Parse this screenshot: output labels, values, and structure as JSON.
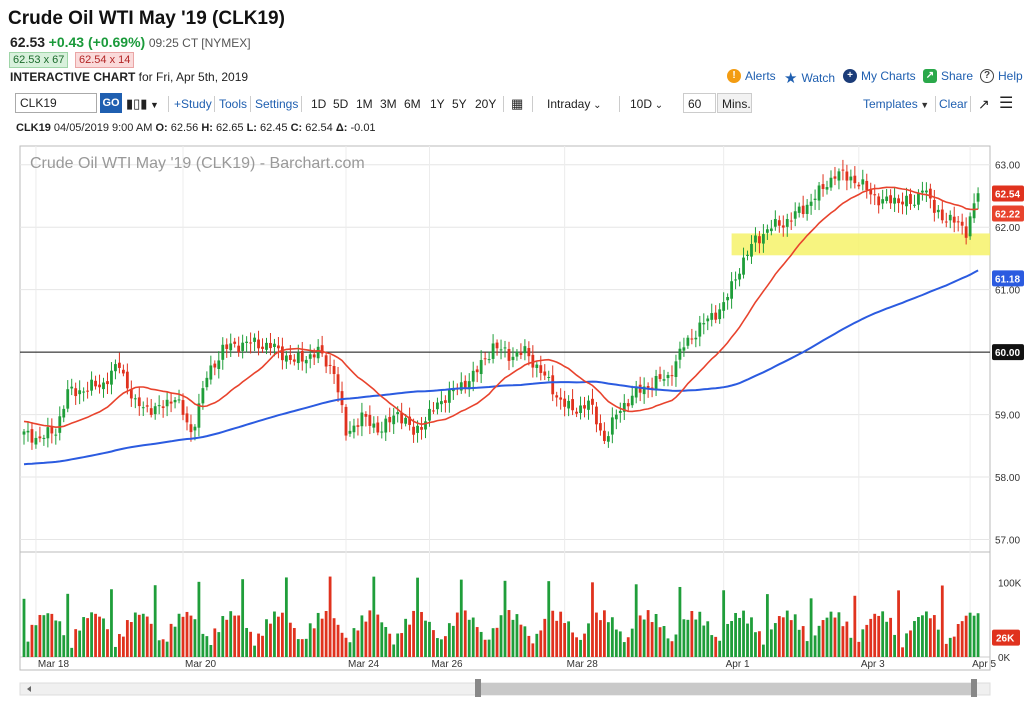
{
  "header": {
    "title": "Crude Oil WTI May '19 (CLK19)",
    "last": "62.53",
    "change": "+0.43 (+0.69%)",
    "time": "09:25 CT [NYMEX]",
    "bid": "62.53 x 67",
    "ask": "62.54 x 14",
    "interactive_label": "INTERACTIVE CHART",
    "interactive_for": " for Fri, Apr 5th, 2019"
  },
  "links": {
    "alerts": "Alerts",
    "watch": "Watch",
    "mycharts": "My Charts",
    "share": "Share",
    "help": "Help"
  },
  "toolbar": {
    "symbol": "CLK19",
    "go": "GO",
    "study": "+Study",
    "tools": "Tools",
    "settings": "Settings",
    "periods": [
      "1D",
      "5D",
      "1M",
      "3M",
      "6M",
      "1Y",
      "5Y",
      "20Y"
    ],
    "interval": "Intraday",
    "range": "10D",
    "mins_value": "60",
    "mins_label": "Mins.",
    "templates": "Templates",
    "clear": "Clear"
  },
  "ohlc": {
    "symbol": "CLK19",
    "date": " 04/05/2019 9:00 AM ",
    "o_label": "O:",
    "o": " 62.56 ",
    "h_label": "H:",
    "h": " 62.65 ",
    "l_label": "L:",
    "l": " 62.45 ",
    "c_label": "C:",
    "c": " 62.54 ",
    "d_label": "Δ:",
    "d": " -0.01"
  },
  "colors": {
    "up": "#1f9e3a",
    "down": "#e0321e",
    "ma_fast": "#e8432d",
    "ma_slow": "#2b5be0",
    "highlight": "#f6f26a",
    "link": "#1f5fb0"
  },
  "chart_data": {
    "type": "candlestick",
    "title": "Crude Oil WTI May '19 (CLK19) - Barchart.com",
    "interval": "60 min",
    "ylim": [
      56.8,
      63.3
    ],
    "y_ticks": [
      "63.00",
      "62.00",
      "61.00",
      "60.00",
      "59.00",
      "58.00",
      "57.00"
    ],
    "y_tick_values": [
      63,
      62,
      61,
      60,
      59,
      58,
      57
    ],
    "x_tick_labels": [
      "Mar 18",
      "Mar 20",
      "Mar 24",
      "Mar 26",
      "Mar 28",
      "Apr 1",
      "Apr 3",
      "Apr 5"
    ],
    "x_tick_bar_index": [
      3,
      40,
      81,
      102,
      136,
      176,
      210,
      238
    ],
    "horizontal_line": 60.0,
    "support_zone": [
      61.55,
      61.9
    ],
    "price_tags": [
      {
        "label": "62.54",
        "value": 62.54,
        "color": "#e0321e"
      },
      {
        "label": "62.22",
        "value": 62.22,
        "color": "#e8432d"
      },
      {
        "label": "61.18",
        "value": 61.18,
        "color": "#2b5be0"
      },
      {
        "label": "60.00",
        "value": 60.0,
        "color": "#111"
      }
    ],
    "close_anchors": [
      [
        0,
        58.68
      ],
      [
        4,
        58.62
      ],
      [
        8,
        58.75
      ],
      [
        11,
        59.35
      ],
      [
        15,
        59.4
      ],
      [
        20,
        59.5
      ],
      [
        24,
        59.8
      ],
      [
        28,
        59.15
      ],
      [
        34,
        59.08
      ],
      [
        38,
        59.3
      ],
      [
        42,
        58.7
      ],
      [
        46,
        59.6
      ],
      [
        50,
        60.05
      ],
      [
        56,
        60.15
      ],
      [
        62,
        60.1
      ],
      [
        68,
        59.85
      ],
      [
        74,
        60.0
      ],
      [
        78,
        59.7
      ],
      [
        81,
        58.7
      ],
      [
        85,
        58.95
      ],
      [
        90,
        58.75
      ],
      [
        94,
        59.05
      ],
      [
        98,
        58.7
      ],
      [
        102,
        59.0
      ],
      [
        106,
        59.3
      ],
      [
        110,
        59.45
      ],
      [
        114,
        59.7
      ],
      [
        118,
        60.1
      ],
      [
        122,
        59.95
      ],
      [
        126,
        60.0
      ],
      [
        130,
        59.7
      ],
      [
        134,
        59.3
      ],
      [
        138,
        59.05
      ],
      [
        142,
        59.2
      ],
      [
        146,
        58.6
      ],
      [
        150,
        59.1
      ],
      [
        154,
        59.35
      ],
      [
        158,
        59.5
      ],
      [
        162,
        59.6
      ],
      [
        166,
        60.1
      ],
      [
        170,
        60.4
      ],
      [
        176,
        60.75
      ],
      [
        180,
        61.35
      ],
      [
        184,
        61.8
      ],
      [
        188,
        62.0
      ],
      [
        192,
        62.1
      ],
      [
        196,
        62.3
      ],
      [
        200,
        62.55
      ],
      [
        204,
        62.85
      ],
      [
        208,
        62.8
      ],
      [
        212,
        62.6
      ],
      [
        216,
        62.4
      ],
      [
        220,
        62.45
      ],
      [
        224,
        62.35
      ],
      [
        226,
        62.7
      ],
      [
        229,
        62.25
      ],
      [
        232,
        62.15
      ],
      [
        235,
        62.05
      ],
      [
        237,
        61.95
      ],
      [
        240,
        62.55
      ]
    ],
    "volume_axis": [
      "100K",
      "26K",
      "0K"
    ],
    "last_volume": "26K"
  }
}
